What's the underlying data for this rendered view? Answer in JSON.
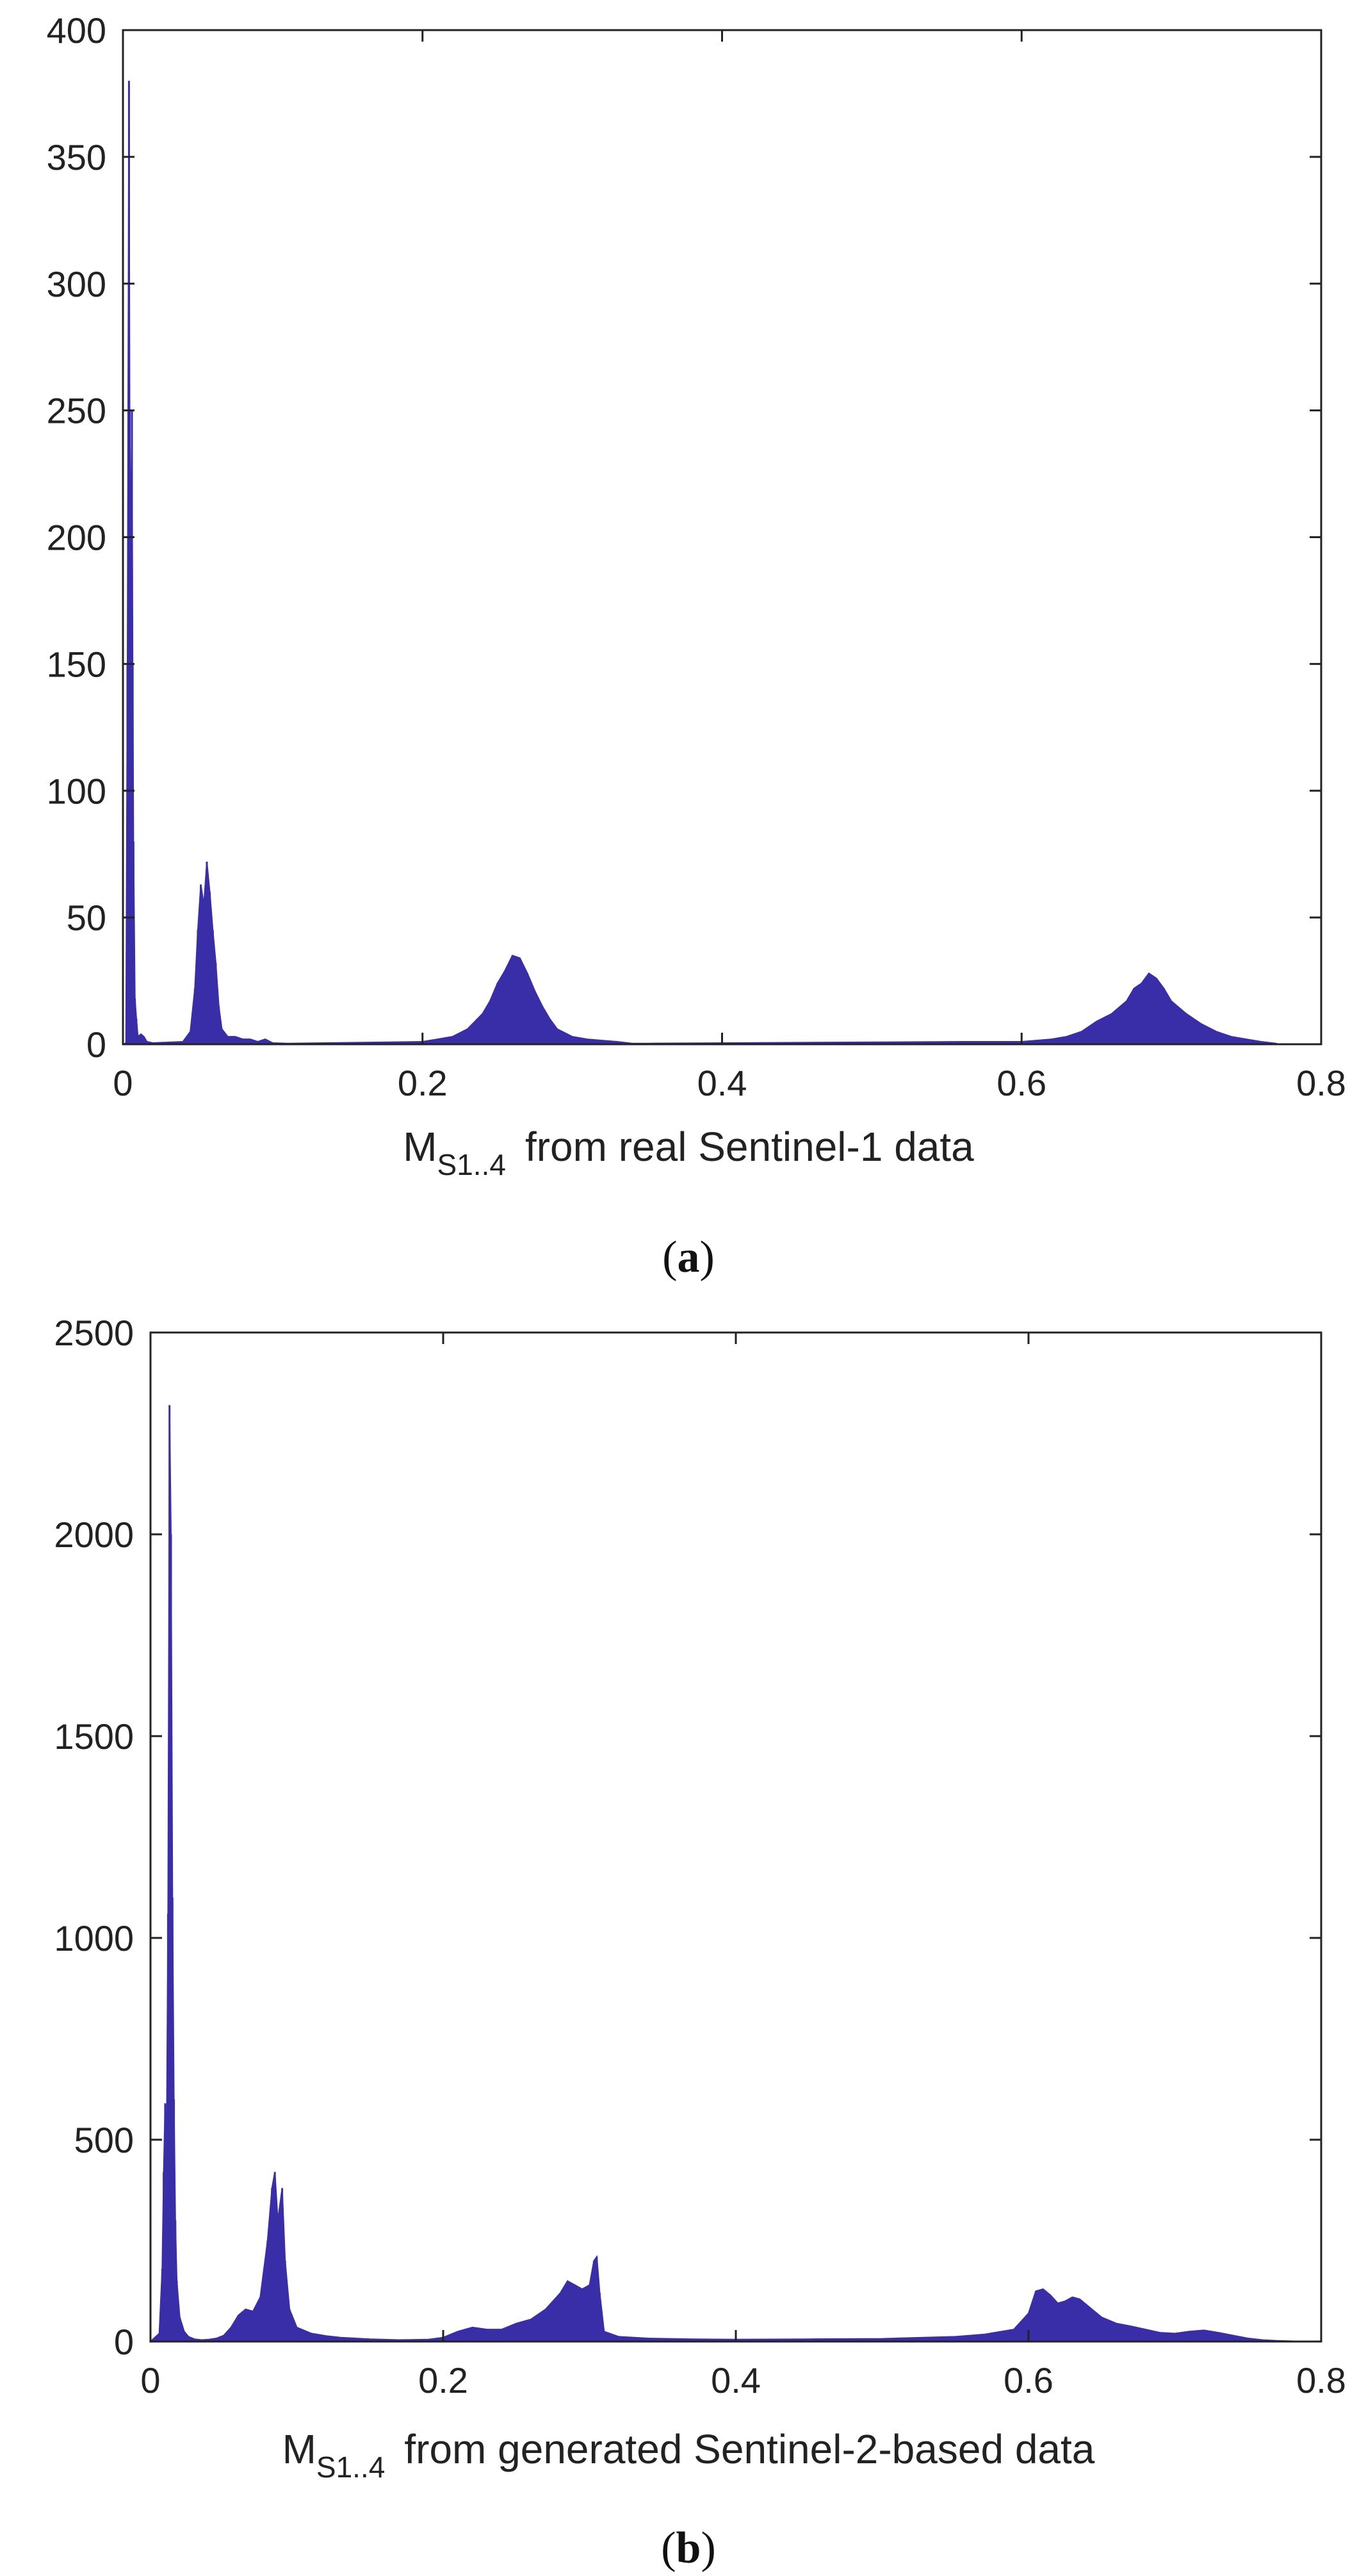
{
  "chart_data": [
    {
      "type": "bar",
      "panel_label": "a",
      "xlabel": {
        "main": "M",
        "subscript": "S1..4",
        "rest": "from real Sentinel-1 data"
      },
      "ylabel": "",
      "title": "",
      "xlim": [
        0,
        0.8
      ],
      "ylim": [
        0,
        400
      ],
      "xticks": [
        "0",
        "0.2",
        "0.4",
        "0.6",
        "0.8"
      ],
      "yticks": [
        "0",
        "50",
        "100",
        "150",
        "200",
        "250",
        "300",
        "350",
        "400"
      ],
      "grid": false,
      "color": "#3a2ea8",
      "bins": [
        [
          0.0,
          0
        ],
        [
          0.002,
          0.5
        ],
        [
          0.003,
          150
        ],
        [
          0.004,
          380
        ],
        [
          0.0045,
          250
        ],
        [
          0.005,
          190
        ],
        [
          0.006,
          250
        ],
        [
          0.0065,
          150
        ],
        [
          0.007,
          80
        ],
        [
          0.008,
          18
        ],
        [
          0.009,
          10
        ],
        [
          0.01,
          3
        ],
        [
          0.012,
          4
        ],
        [
          0.014,
          3
        ],
        [
          0.016,
          1
        ],
        [
          0.02,
          0.5
        ],
        [
          0.04,
          1
        ],
        [
          0.045,
          5
        ],
        [
          0.048,
          22
        ],
        [
          0.05,
          45
        ],
        [
          0.052,
          63
        ],
        [
          0.054,
          55
        ],
        [
          0.056,
          72
        ],
        [
          0.058,
          60
        ],
        [
          0.06,
          45
        ],
        [
          0.062,
          32
        ],
        [
          0.064,
          15
        ],
        [
          0.066,
          6
        ],
        [
          0.07,
          3
        ],
        [
          0.075,
          3
        ],
        [
          0.08,
          2
        ],
        [
          0.085,
          2
        ],
        [
          0.09,
          1
        ],
        [
          0.095,
          2
        ],
        [
          0.1,
          0.5
        ],
        [
          0.11,
          0.3
        ],
        [
          0.2,
          1
        ],
        [
          0.21,
          2
        ],
        [
          0.22,
          3
        ],
        [
          0.23,
          6
        ],
        [
          0.24,
          12
        ],
        [
          0.245,
          17
        ],
        [
          0.25,
          24
        ],
        [
          0.255,
          29
        ],
        [
          0.26,
          35
        ],
        [
          0.265,
          34
        ],
        [
          0.27,
          28
        ],
        [
          0.275,
          21
        ],
        [
          0.28,
          15
        ],
        [
          0.285,
          10
        ],
        [
          0.29,
          6
        ],
        [
          0.3,
          3
        ],
        [
          0.31,
          2
        ],
        [
          0.32,
          1.5
        ],
        [
          0.33,
          1
        ],
        [
          0.34,
          0.3
        ],
        [
          0.56,
          1
        ],
        [
          0.58,
          1
        ],
        [
          0.6,
          1
        ],
        [
          0.62,
          2
        ],
        [
          0.63,
          3
        ],
        [
          0.64,
          5
        ],
        [
          0.65,
          9
        ],
        [
          0.66,
          12
        ],
        [
          0.67,
          17
        ],
        [
          0.675,
          22
        ],
        [
          0.68,
          24
        ],
        [
          0.685,
          28
        ],
        [
          0.69,
          26
        ],
        [
          0.695,
          22
        ],
        [
          0.7,
          17
        ],
        [
          0.71,
          12
        ],
        [
          0.72,
          8
        ],
        [
          0.73,
          5
        ],
        [
          0.74,
          3
        ],
        [
          0.75,
          2
        ],
        [
          0.76,
          1
        ],
        [
          0.77,
          0.3
        ]
      ]
    },
    {
      "type": "bar",
      "panel_label": "b",
      "xlabel": {
        "main": "M",
        "subscript": "S1..4",
        "rest": "from generated Sentinel-2-based data"
      },
      "ylabel": "",
      "title": "",
      "xlim": [
        0,
        0.8
      ],
      "ylim": [
        0,
        2500
      ],
      "xticks": [
        "0",
        "0.2",
        "0.4",
        "0.6",
        "0.8"
      ],
      "yticks": [
        "0",
        "500",
        "1000",
        "1500",
        "2000",
        "2500"
      ],
      "grid": false,
      "color": "#3a2ea8",
      "bins": [
        [
          0.0,
          0
        ],
        [
          0.006,
          20
        ],
        [
          0.008,
          180
        ],
        [
          0.009,
          420
        ],
        [
          0.01,
          590
        ],
        [
          0.011,
          480
        ],
        [
          0.012,
          1060
        ],
        [
          0.013,
          2320
        ],
        [
          0.014,
          2000
        ],
        [
          0.015,
          1100
        ],
        [
          0.016,
          600
        ],
        [
          0.017,
          300
        ],
        [
          0.018,
          150
        ],
        [
          0.02,
          60
        ],
        [
          0.023,
          25
        ],
        [
          0.026,
          12
        ],
        [
          0.03,
          6
        ],
        [
          0.035,
          4
        ],
        [
          0.04,
          5
        ],
        [
          0.045,
          8
        ],
        [
          0.05,
          15
        ],
        [
          0.055,
          35
        ],
        [
          0.06,
          65
        ],
        [
          0.065,
          80
        ],
        [
          0.07,
          75
        ],
        [
          0.075,
          110
        ],
        [
          0.08,
          250
        ],
        [
          0.083,
          380
        ],
        [
          0.085,
          420
        ],
        [
          0.087,
          300
        ],
        [
          0.09,
          380
        ],
        [
          0.092,
          200
        ],
        [
          0.095,
          80
        ],
        [
          0.1,
          35
        ],
        [
          0.11,
          20
        ],
        [
          0.12,
          14
        ],
        [
          0.13,
          10
        ],
        [
          0.14,
          8
        ],
        [
          0.15,
          6
        ],
        [
          0.17,
          4
        ],
        [
          0.19,
          5
        ],
        [
          0.2,
          10
        ],
        [
          0.21,
          25
        ],
        [
          0.22,
          35
        ],
        [
          0.23,
          30
        ],
        [
          0.24,
          30
        ],
        [
          0.25,
          45
        ],
        [
          0.26,
          55
        ],
        [
          0.27,
          80
        ],
        [
          0.28,
          120
        ],
        [
          0.285,
          150
        ],
        [
          0.29,
          140
        ],
        [
          0.295,
          130
        ],
        [
          0.3,
          140
        ],
        [
          0.303,
          200
        ],
        [
          0.305,
          210
        ],
        [
          0.307,
          120
        ],
        [
          0.31,
          25
        ],
        [
          0.32,
          12
        ],
        [
          0.34,
          8
        ],
        [
          0.37,
          6
        ],
        [
          0.4,
          5
        ],
        [
          0.45,
          6
        ],
        [
          0.5,
          7
        ],
        [
          0.55,
          12
        ],
        [
          0.57,
          18
        ],
        [
          0.59,
          30
        ],
        [
          0.6,
          70
        ],
        [
          0.605,
          125
        ],
        [
          0.61,
          130
        ],
        [
          0.615,
          115
        ],
        [
          0.62,
          95
        ],
        [
          0.625,
          100
        ],
        [
          0.63,
          110
        ],
        [
          0.635,
          105
        ],
        [
          0.64,
          90
        ],
        [
          0.65,
          60
        ],
        [
          0.66,
          45
        ],
        [
          0.67,
          38
        ],
        [
          0.68,
          30
        ],
        [
          0.69,
          22
        ],
        [
          0.7,
          20
        ],
        [
          0.71,
          25
        ],
        [
          0.72,
          28
        ],
        [
          0.73,
          22
        ],
        [
          0.74,
          15
        ],
        [
          0.75,
          8
        ],
        [
          0.76,
          4
        ],
        [
          0.77,
          2
        ],
        [
          0.78,
          1
        ]
      ]
    }
  ]
}
